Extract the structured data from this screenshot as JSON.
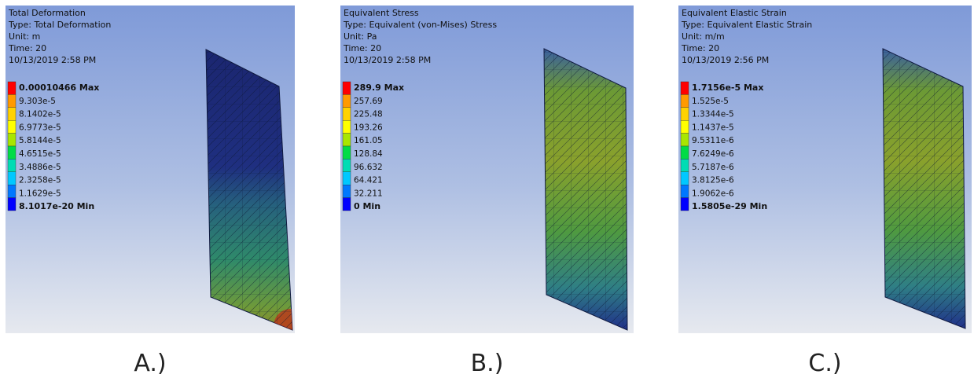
{
  "panels": [
    {
      "header_lines": [
        "Total Deformation",
        "Type: Total Deformation",
        "Unit: m",
        "Time: 20",
        "10/13/2019 2:58 PM"
      ],
      "legend": [
        "0.00010466 Max",
        "9.303e-5",
        "8.1402e-5",
        "6.9773e-5",
        "5.8144e-5",
        "4.6515e-5",
        "3.4886e-5",
        "2.3258e-5",
        "1.1629e-5",
        "8.1017e-20 Min"
      ],
      "caption": "A.)"
    },
    {
      "header_lines": [
        "Equivalent Stress",
        "Type: Equivalent (von-Mises) Stress",
        "Unit: Pa",
        "Time: 20",
        "10/13/2019 2:58 PM"
      ],
      "legend": [
        "289.9 Max",
        "257.69",
        "225.48",
        "193.26",
        "161.05",
        "128.84",
        "96.632",
        "64.421",
        "32.211",
        "0 Min"
      ],
      "caption": "B.)"
    },
    {
      "header_lines": [
        "Equivalent Elastic Strain",
        "Type: Equivalent Elastic Strain",
        "Unit: m/m",
        "Time: 20",
        "10/13/2019 2:56 PM"
      ],
      "legend": [
        "1.7156e-5 Max",
        "1.525e-5",
        "1.3344e-5",
        "1.1437e-5",
        "9.5311e-6",
        "7.6249e-6",
        "5.7187e-6",
        "3.8125e-6",
        "1.9062e-6",
        "1.5805e-29 Min"
      ],
      "caption": "C.)"
    }
  ]
}
